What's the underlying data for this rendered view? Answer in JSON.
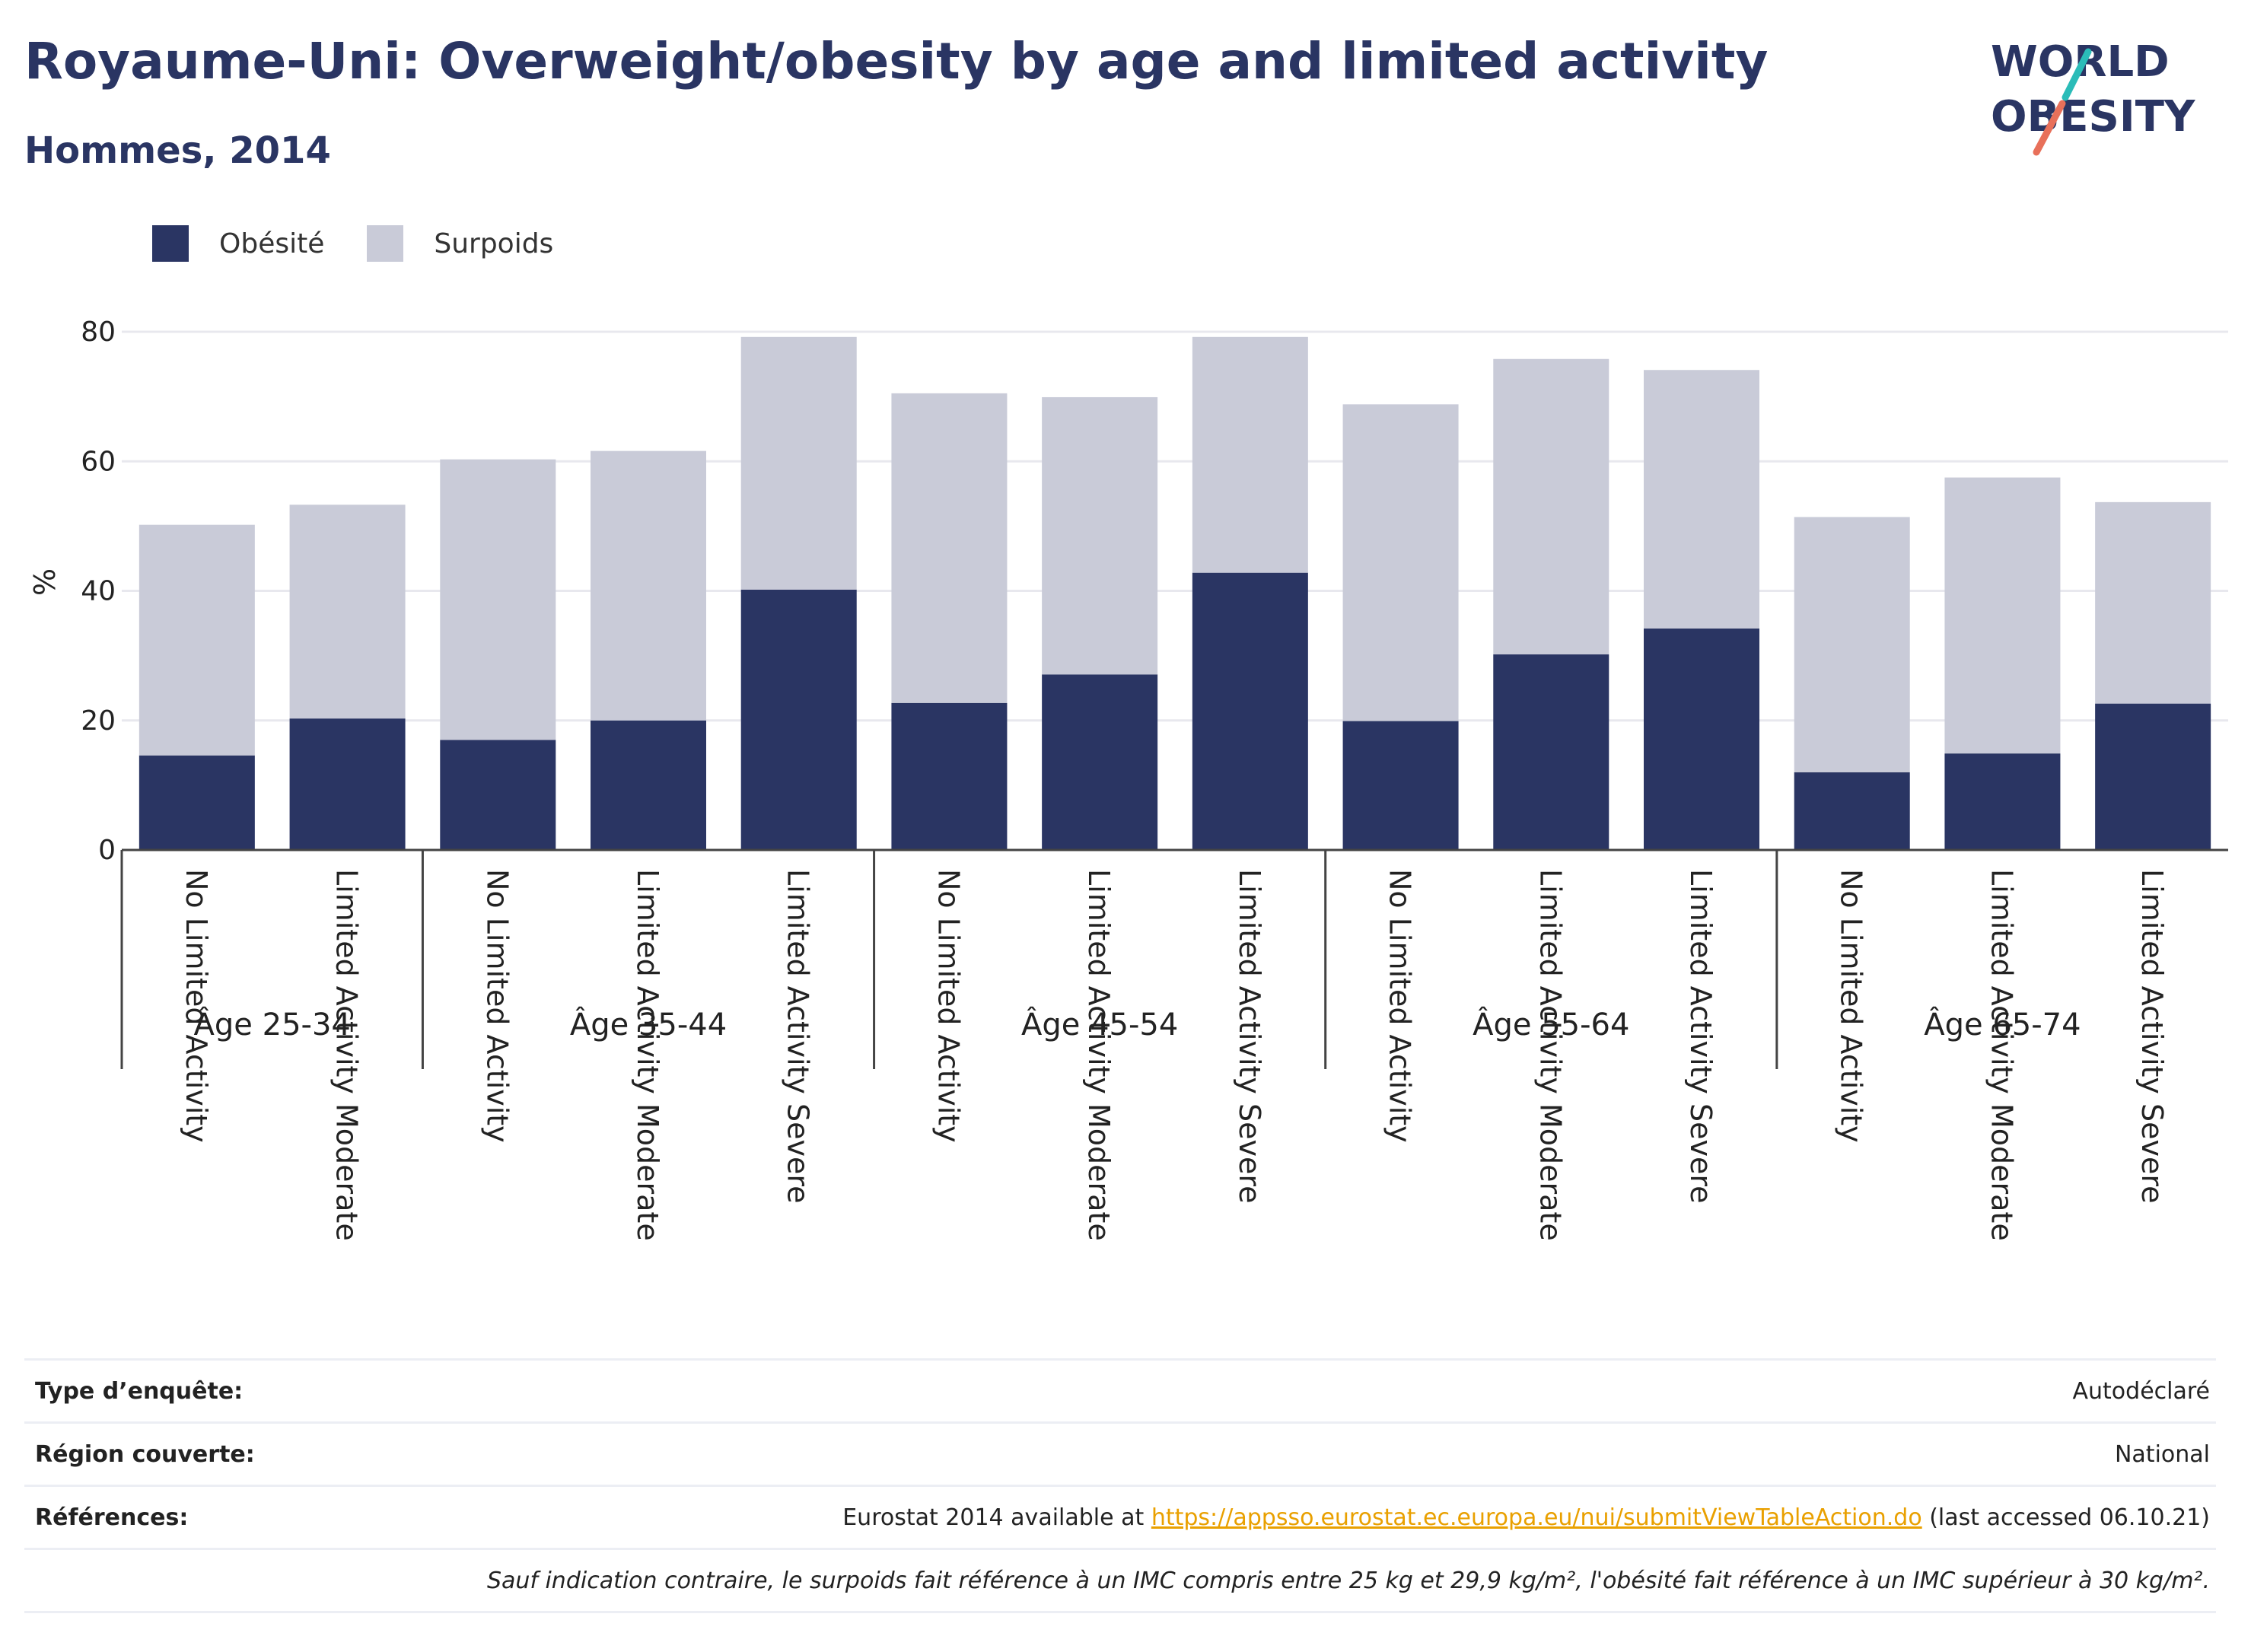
{
  "header": {
    "title": "Royaume-Uni: Overweight/obesity by age and limited activity",
    "subtitle": "Hommes, 2014",
    "logo_line1": "WORLD",
    "logo_line2": "OBESITY"
  },
  "legend": {
    "items": [
      {
        "label": "Obésité",
        "color": "#2a3563"
      },
      {
        "label": "Surpoids",
        "color": "#c9cbd8"
      }
    ]
  },
  "chart_data": {
    "type": "bar",
    "stacked": true,
    "ylabel": "%",
    "ylim": [
      0,
      80
    ],
    "yticks": [
      0,
      20,
      40,
      60,
      80
    ],
    "grid": true,
    "legend_position": "top-left",
    "groups": [
      {
        "label": "Âge 25-34",
        "categories": [
          "No Limited Activity",
          "Limited Activity Moderate"
        ]
      },
      {
        "label": "Âge 35-44",
        "categories": [
          "No Limited Activity",
          "Limited Activity Moderate",
          "Limited Activity Severe"
        ]
      },
      {
        "label": "Âge 45-54",
        "categories": [
          "No Limited Activity",
          "Limited Activity Moderate",
          "Limited Activity Severe"
        ]
      },
      {
        "label": "Âge 55-64",
        "categories": [
          "No Limited Activity",
          "Limited Activity Moderate",
          "Limited Activity Severe"
        ]
      },
      {
        "label": "Âge 65-74",
        "categories": [
          "No Limited Activity",
          "Limited Activity Moderate",
          "Limited Activity Severe"
        ]
      }
    ],
    "series": [
      {
        "name": "Obésité",
        "color": "#2a3563",
        "values": [
          14.6,
          20.3,
          17.0,
          20.0,
          40.2,
          22.7,
          27.1,
          42.8,
          19.9,
          30.2,
          34.2,
          12.0,
          14.9,
          22.6
        ]
      },
      {
        "name": "Surpoids",
        "color": "#c9cbd8",
        "values": [
          35.6,
          33.0,
          43.3,
          41.6,
          39.0,
          47.8,
          42.8,
          36.4,
          48.9,
          45.6,
          39.9,
          39.4,
          42.6,
          31.1
        ]
      }
    ]
  },
  "info": {
    "survey_type_label": "Type d’enquête:",
    "survey_type_value": "Autodéclaré",
    "region_label": "Région couverte:",
    "region_value": "National",
    "references_label": "Références:",
    "references_prefix": "Eurostat 2014 available at ",
    "references_link": "https://appsso.eurostat.ec.europa.eu/nui/submitViewTableAction.do",
    "references_suffix": " (last accessed 06.10.21)",
    "note": "Sauf indication contraire, le surpoids fait référence à un IMC compris entre 25 kg et 29,9 kg/m², l'obésité fait référence à un IMC supérieur à 30 kg/m²."
  }
}
